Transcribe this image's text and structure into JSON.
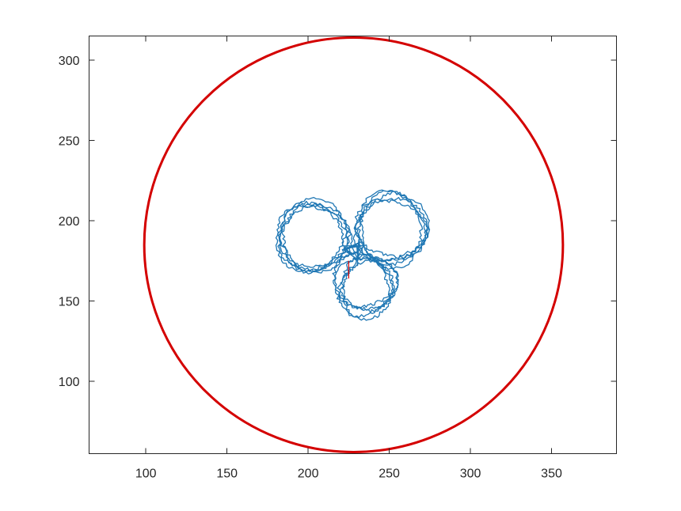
{
  "chart_data": {
    "type": "line",
    "title": "",
    "xlabel": "",
    "ylabel": "",
    "xlim": [
      65,
      390
    ],
    "ylim": [
      55,
      315
    ],
    "grid": false,
    "legend": "none",
    "x_ticks": [
      100,
      150,
      200,
      250,
      300,
      350
    ],
    "y_ticks": [
      100,
      150,
      200,
      250,
      300
    ],
    "colors": {
      "boundary": "#d40000",
      "trajectory": "#1f77b4",
      "start": "#d40000"
    },
    "series": [
      {
        "role": "boundary-circle",
        "center": [
          228,
          185
        ],
        "radius": 129
      },
      {
        "role": "trajectory",
        "loops": [
          {
            "center": [
              203,
              190
            ],
            "radius": 22
          },
          {
            "center": [
              252,
              195
            ],
            "radius": 21
          },
          {
            "center": [
              235,
              160
            ],
            "radius": 20
          }
        ],
        "hub": [
          227,
          182
        ],
        "turns": 5,
        "x_range": [
          186,
          272
        ],
        "y_range": [
          141,
          218
        ]
      },
      {
        "role": "start-mark",
        "x": [
          225,
          225
        ],
        "y": [
          175,
          164
        ]
      }
    ]
  }
}
